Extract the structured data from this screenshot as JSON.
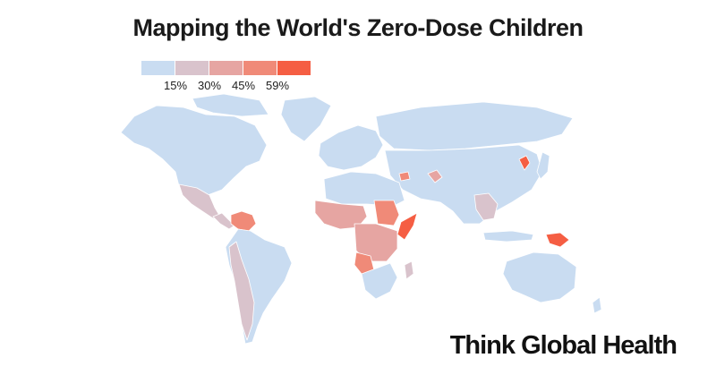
{
  "title": "Mapping the World's Zero-Dose Children",
  "legend": {
    "swatches": [
      "#c9dcf1",
      "#d9c3cc",
      "#e6a5a2",
      "#f08a78",
      "#f55e43"
    ],
    "labels": [
      "15%",
      "30%",
      "45%",
      "59%"
    ]
  },
  "brand": "Think Global Health",
  "colors": {
    "land": "#c9dcf1",
    "low": "#d9c3cc",
    "mid": "#e6a5a2",
    "high": "#f08a78",
    "max": "#f55e43",
    "border": "#ffffff"
  }
}
